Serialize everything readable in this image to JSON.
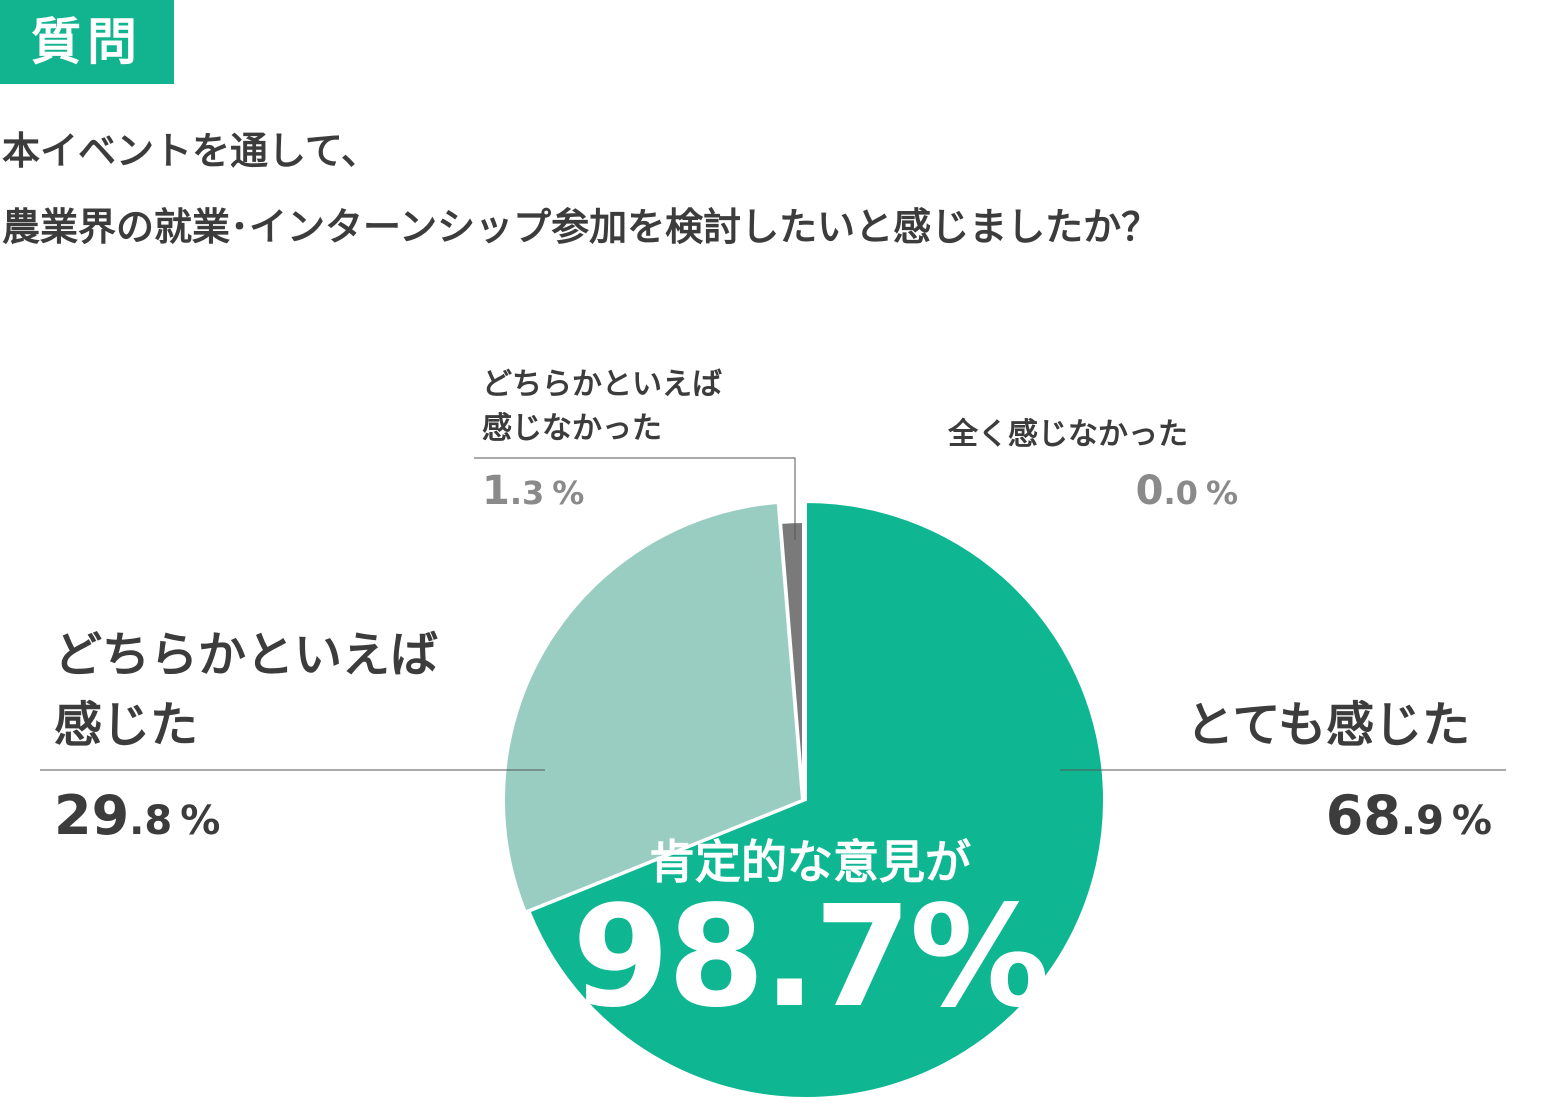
{
  "badge": "質問",
  "question": {
    "line1": "本イベントを通して、",
    "line2": "農業界の就業･インターンシップ参加を検討したいと感じましたか？"
  },
  "chart_data": {
    "type": "pie",
    "title": "",
    "slices": [
      {
        "label": "とても感じた",
        "value": 68.9,
        "int": "68",
        "dec": ".9",
        "color": "#0eb692"
      },
      {
        "label": "どちらかといえば感じた",
        "value": 29.8,
        "int": "29",
        "dec": ".8",
        "color": "#99cdc2"
      },
      {
        "label": "どちらかといえば感じなかった",
        "value": 1.3,
        "int": "1",
        "dec": ".3",
        "color": "#7a7a7a"
      },
      {
        "label": "全く感じなかった",
        "value": 0.0,
        "int": "0",
        "dec": ".0",
        "color": "#cccccc"
      }
    ],
    "percent_symbol": "%",
    "summary_caption": "肯定的な意見が",
    "summary_value": "98.7%"
  },
  "labels": {
    "very_line1": "とても感じた",
    "some_line1": "どちらかといえば",
    "some_line2": "感じた",
    "someno_line1": "どちらかといえば",
    "someno_line2": "感じなかった",
    "none_line1": "全く感じなかった"
  }
}
